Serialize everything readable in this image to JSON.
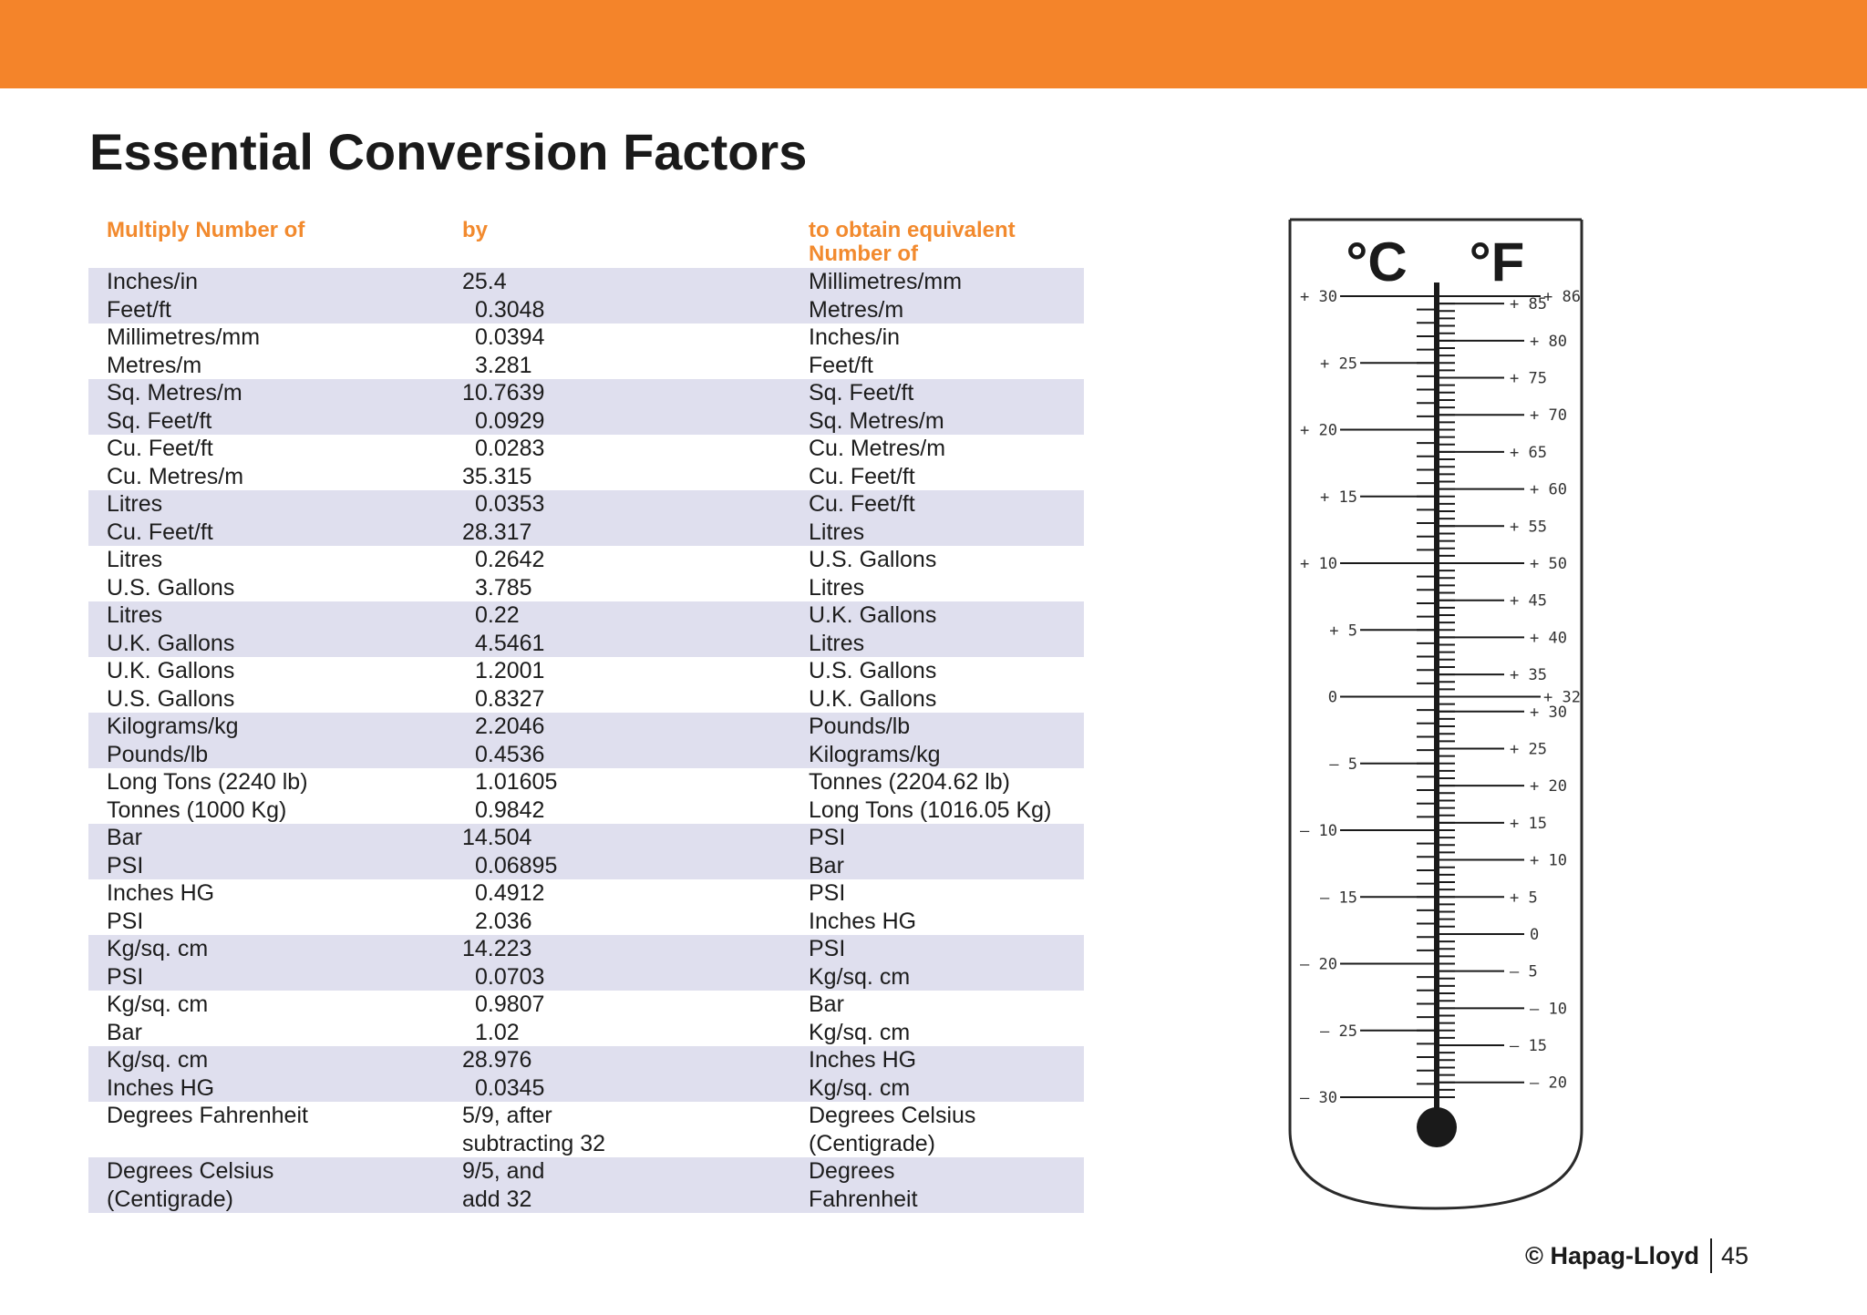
{
  "page": {
    "title": "Essential Conversion Factors",
    "brand": "© Hapag-Lloyd",
    "page_number": "45"
  },
  "table": {
    "headers": [
      "Multiply Number of",
      "by",
      "to obtain equivalent",
      "Number of"
    ],
    "groups": [
      {
        "shaded": true,
        "rows": [
          {
            "from": "Inches/in",
            "by": "25.4",
            "to": "Millimetres/mm"
          },
          {
            "from": "Feet/ft",
            "by": "0.3048",
            "to": "Metres/m",
            "pad": true
          }
        ]
      },
      {
        "shaded": false,
        "rows": [
          {
            "from": "Millimetres/mm",
            "by": "0.0394",
            "to": "Inches/in",
            "pad": true
          },
          {
            "from": "Metres/m",
            "by": "3.281",
            "to": "Feet/ft",
            "pad": true
          }
        ]
      },
      {
        "shaded": true,
        "rows": [
          {
            "from": "Sq. Metres/m",
            "by": "10.7639",
            "to": "Sq. Feet/ft"
          },
          {
            "from": "Sq. Feet/ft",
            "by": "0.0929",
            "to": "Sq. Metres/m",
            "pad": true
          }
        ]
      },
      {
        "shaded": false,
        "rows": [
          {
            "from": "Cu. Feet/ft",
            "by": "0.0283",
            "to": "Cu. Metres/m",
            "pad": true
          },
          {
            "from": "Cu. Metres/m",
            "by": "35.315",
            "to": "Cu. Feet/ft"
          }
        ]
      },
      {
        "shaded": true,
        "rows": [
          {
            "from": "Litres",
            "by": "0.0353",
            "to": "Cu. Feet/ft",
            "pad": true
          },
          {
            "from": "Cu. Feet/ft",
            "by": "28.317",
            "to": "Litres"
          }
        ]
      },
      {
        "shaded": false,
        "rows": [
          {
            "from": "Litres",
            "by": "0.2642",
            "to": "U.S. Gallons",
            "pad": true
          },
          {
            "from": "U.S. Gallons",
            "by": "3.785",
            "to": "Litres",
            "pad": true
          }
        ]
      },
      {
        "shaded": true,
        "rows": [
          {
            "from": "Litres",
            "by": "0.22",
            "to": "U.K. Gallons",
            "pad": true
          },
          {
            "from": "U.K. Gallons",
            "by": "4.5461",
            "to": "Litres",
            "pad": true
          }
        ]
      },
      {
        "shaded": false,
        "rows": [
          {
            "from": "U.K. Gallons",
            "by": "1.2001",
            "to": "U.S. Gallons",
            "pad": true
          },
          {
            "from": "U.S. Gallons",
            "by": "0.8327",
            "to": "U.K. Gallons",
            "pad": true
          }
        ]
      },
      {
        "shaded": true,
        "rows": [
          {
            "from": "Kilograms/kg",
            "by": "2.2046",
            "to": "Pounds/lb",
            "pad": true
          },
          {
            "from": "Pounds/lb",
            "by": "0.4536",
            "to": "Kilograms/kg",
            "pad": true
          }
        ]
      },
      {
        "shaded": false,
        "rows": [
          {
            "from": "Long Tons (2240 lb)",
            "by": "1.01605",
            "to": "Tonnes (2204.62 lb)",
            "pad": true
          },
          {
            "from": "Tonnes (1000 Kg)",
            "by": "0.9842",
            "to": "Long Tons (1016.05 Kg)",
            "pad": true
          }
        ]
      },
      {
        "shaded": true,
        "rows": [
          {
            "from": "Bar",
            "by": "14.504",
            "to": "PSI"
          },
          {
            "from": "PSI",
            "by": "0.06895",
            "to": "Bar",
            "pad": true
          }
        ]
      },
      {
        "shaded": false,
        "rows": [
          {
            "from": "Inches HG",
            "by": "0.4912",
            "to": "PSI",
            "pad": true
          },
          {
            "from": "PSI",
            "by": "2.036",
            "to": "Inches HG",
            "pad": true
          }
        ]
      },
      {
        "shaded": true,
        "rows": [
          {
            "from": "Kg/sq. cm",
            "by": "14.223",
            "to": "PSI"
          },
          {
            "from": "PSI",
            "by": "0.0703",
            "to": "Kg/sq. cm",
            "pad": true
          }
        ]
      },
      {
        "shaded": false,
        "rows": [
          {
            "from": "Kg/sq. cm",
            "by": "0.9807",
            "to": "Bar",
            "pad": true
          },
          {
            "from": "Bar",
            "by": "1.02",
            "to": "Kg/sq. cm",
            "pad": true
          }
        ]
      },
      {
        "shaded": true,
        "rows": [
          {
            "from": "Kg/sq. cm",
            "by": "28.976",
            "to": "Inches HG"
          },
          {
            "from": "Inches HG",
            "by": "0.0345",
            "to": "Kg/sq. cm",
            "pad": true
          }
        ]
      },
      {
        "shaded": false,
        "rows": [
          {
            "from": "Degrees Fahrenheit",
            "by": "5/9, after",
            "to": "Degrees Celsius"
          },
          {
            "from": "",
            "by": "subtracting 32",
            "to": "(Centigrade)"
          }
        ]
      },
      {
        "shaded": true,
        "rows": [
          {
            "from": "Degrees Celsius",
            "by": "9/5, and",
            "to": "Degrees"
          },
          {
            "from": "(Centigrade)",
            "by": "add 32",
            "to": "Fahrenheit"
          }
        ]
      }
    ]
  },
  "thermometer": {
    "celsius_symbol": "°C",
    "fahrenheit_symbol": "°F",
    "celsius_labels": [
      "+ 30",
      "+ 25",
      "+ 20",
      "+ 15",
      "+ 10",
      "+ 5",
      "0",
      "– 5",
      "– 10",
      "– 15",
      "– 20",
      "– 25",
      "– 30"
    ],
    "celsius_values": [
      30,
      25,
      20,
      15,
      10,
      5,
      0,
      -5,
      -10,
      -15,
      -20,
      -25,
      -30
    ],
    "fahrenheit_labels": [
      "+ 85",
      "+ 80",
      "+ 75",
      "+ 70",
      "+ 65",
      "+ 60",
      "+ 55",
      "+ 50",
      "+ 45",
      "+ 40",
      "+ 35",
      "+ 30",
      "+ 25",
      "+ 20",
      "+ 15",
      "+ 10",
      "+ 5",
      "0",
      "– 5",
      "– 10",
      "– 15",
      "– 20"
    ],
    "fahrenheit_values": [
      85,
      80,
      75,
      70,
      65,
      60,
      55,
      50,
      45,
      40,
      35,
      30,
      25,
      20,
      15,
      10,
      5,
      0,
      -5,
      -10,
      -15,
      -20
    ],
    "fahrenheit_marks": [
      "+ 86",
      "+ 32"
    ],
    "fahrenheit_mark_values": [
      86,
      32
    ]
  }
}
